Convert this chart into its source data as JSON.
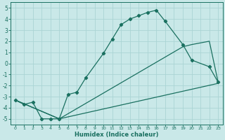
{
  "xlabel": "Humidex (Indice chaleur)",
  "bg_color": "#c9e8e8",
  "grid_color": "#aad4d4",
  "line_color": "#1a7060",
  "xlim": [
    -0.5,
    23.5
  ],
  "ylim": [
    -5.5,
    5.5
  ],
  "xticks": [
    0,
    1,
    2,
    3,
    4,
    5,
    6,
    7,
    8,
    9,
    10,
    11,
    12,
    13,
    14,
    15,
    16,
    17,
    18,
    19,
    20,
    21,
    22,
    23
  ],
  "yticks": [
    -5,
    -4,
    -3,
    -2,
    -1,
    0,
    1,
    2,
    3,
    4,
    5
  ],
  "line1_x": [
    0,
    1,
    2,
    3,
    4,
    5,
    6,
    7,
    8,
    10,
    11,
    12,
    13,
    14,
    15,
    16,
    17,
    19,
    20,
    22,
    23
  ],
  "line1_y": [
    -3.3,
    -3.7,
    -3.5,
    -5.0,
    -5.0,
    -5.0,
    -2.8,
    -2.6,
    -1.3,
    0.9,
    2.2,
    3.5,
    4.0,
    4.3,
    4.6,
    4.8,
    3.8,
    1.7,
    0.3,
    -0.3,
    -1.7
  ],
  "line2_x": [
    0,
    5,
    23
  ],
  "line2_y": [
    -3.3,
    -5.0,
    -1.8
  ],
  "line3_x": [
    0,
    5,
    19,
    20,
    22,
    23
  ],
  "line3_y": [
    -3.3,
    -5.0,
    1.5,
    1.7,
    2.0,
    -1.7
  ]
}
